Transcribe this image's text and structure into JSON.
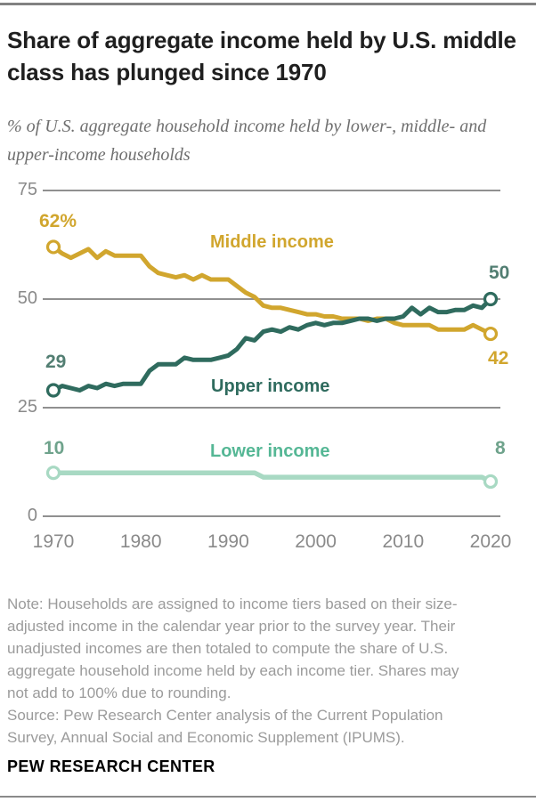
{
  "header": {
    "title": "Share of aggregate income held by U.S. middle class has plunged since 1970",
    "subtitle": "% of U.S. aggregate household income held by lower-, middle- and upper-income households"
  },
  "chart_data": {
    "type": "line",
    "title": "Share of aggregate income held by U.S. middle class has plunged since 1970",
    "xlabel": "",
    "ylabel": "% of U.S. aggregate household income",
    "ylim": [
      0,
      75
    ],
    "yticks": [
      75,
      50,
      25,
      0
    ],
    "xticks": [
      1970,
      1980,
      1990,
      2000,
      2010,
      2020
    ],
    "grid": "horizontal",
    "grid_color": "#909090",
    "legend_position": "inline-labels",
    "x": [
      1970,
      1971,
      1972,
      1973,
      1974,
      1975,
      1976,
      1977,
      1978,
      1979,
      1980,
      1981,
      1982,
      1983,
      1984,
      1985,
      1986,
      1987,
      1988,
      1989,
      1990,
      1991,
      1992,
      1993,
      1994,
      1995,
      1996,
      1997,
      1998,
      1999,
      2000,
      2001,
      2002,
      2003,
      2004,
      2005,
      2006,
      2007,
      2008,
      2009,
      2010,
      2011,
      2012,
      2013,
      2014,
      2015,
      2016,
      2017,
      2018,
      2019,
      2020
    ],
    "series": [
      {
        "name": "Middle income",
        "color": "#d1a62e",
        "name_color": "#d1a62e",
        "value_color": "#d1a62e",
        "start_label": "62%",
        "end_label": "42",
        "values": [
          62,
          60.5,
          59.5,
          60.5,
          61.5,
          59.5,
          61,
          60,
          60,
          60,
          60,
          57.5,
          56,
          55.5,
          55,
          55.5,
          54.5,
          55.5,
          54.5,
          54.5,
          54.5,
          53,
          51.5,
          50.5,
          48.5,
          48,
          48,
          47.5,
          47,
          46.5,
          46.5,
          46,
          46,
          45.5,
          45.5,
          45.5,
          45,
          45.5,
          45.5,
          44.5,
          44,
          44,
          44,
          44,
          43,
          43,
          43,
          43,
          44,
          43,
          42
        ]
      },
      {
        "name": "Upper income",
        "color": "#2f6b5e",
        "name_color": "#2f6b5e",
        "value_color": "#527e72",
        "start_label": "29",
        "end_label": "50",
        "values": [
          29,
          30,
          29.5,
          29,
          30,
          29.5,
          30.5,
          30,
          30.5,
          30.5,
          30.5,
          33.5,
          35,
          35,
          35,
          36.5,
          36,
          36,
          36,
          36.5,
          37,
          38.5,
          41,
          40.5,
          42.5,
          43,
          42.5,
          43.5,
          43,
          44,
          44.5,
          44,
          44.5,
          44.5,
          45,
          45.5,
          45.5,
          45,
          45.5,
          45.5,
          46,
          48,
          46.5,
          48,
          47,
          47,
          47.5,
          47.5,
          48.5,
          48,
          50
        ]
      },
      {
        "name": "Lower income",
        "color": "#a8d9c3",
        "name_color": "#55b795",
        "value_color": "#6fa38c",
        "start_label": "10",
        "end_label": "8",
        "values": [
          10,
          10,
          10,
          10,
          10,
          10,
          10,
          10,
          10,
          10,
          10,
          10,
          10,
          10,
          10,
          10,
          10,
          10,
          10,
          10,
          10,
          10,
          10,
          10,
          9,
          9,
          9,
          9,
          9,
          9,
          9,
          9,
          9,
          9,
          9,
          9,
          9,
          9,
          9,
          9,
          9,
          9,
          9,
          9,
          9,
          9,
          9,
          9,
          9,
          9,
          8
        ]
      }
    ]
  },
  "footer": {
    "note_lines": [
      "Note: Households are assigned to income tiers based on their size-",
      "adjusted income in the calendar year prior to the survey year. Their",
      "unadjusted incomes are then totaled to compute the share of U.S.",
      "aggregate household income held by each income tier. Shares may",
      "not add to 100% due to rounding.",
      "Source: Pew Research Center analysis of the Current Population",
      "Survey, Annual Social and Economic Supplement (IPUMS)."
    ],
    "branding": "PEW RESEARCH CENTER"
  }
}
